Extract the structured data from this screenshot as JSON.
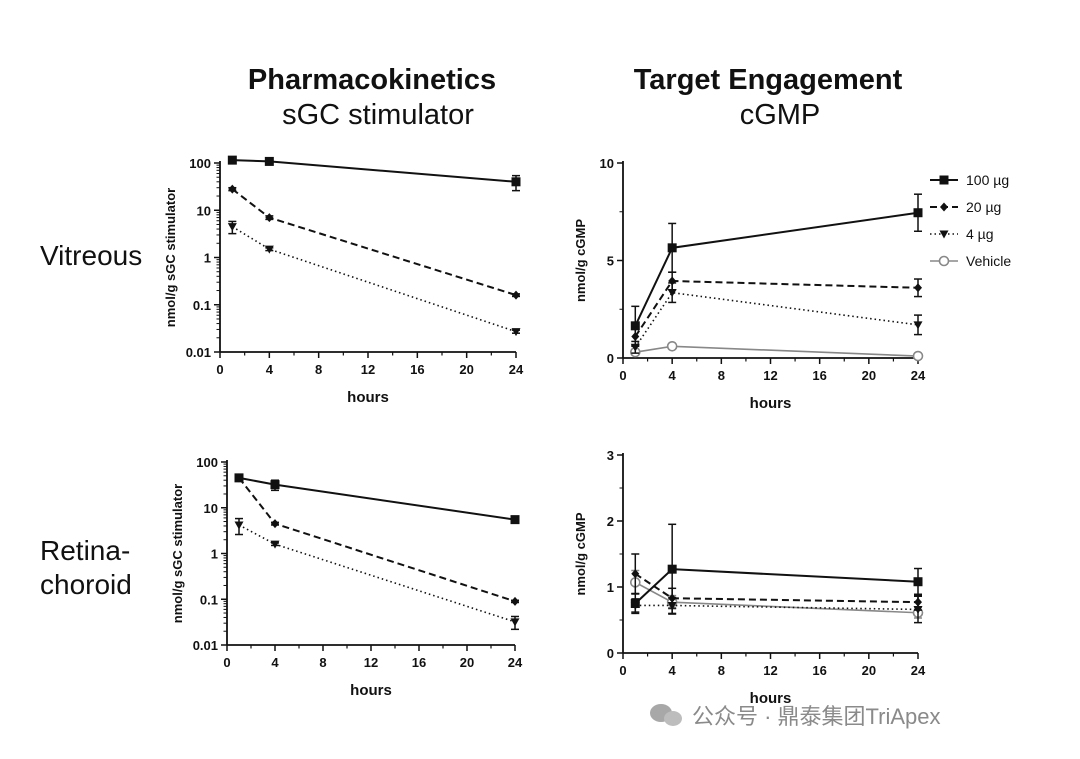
{
  "columns": [
    {
      "title": "Pharmacokinetics",
      "subtitle": "sGC stimulator"
    },
    {
      "title": "Target Engagement",
      "subtitle": "cGMP"
    }
  ],
  "rows": [
    {
      "label_lines": [
        "Vitreous"
      ]
    },
    {
      "label_lines": [
        "Retina-",
        "choroid"
      ]
    }
  ],
  "watermark": "公众号 · 鼎泰集团TriApex",
  "colors": {
    "axis": "#111111",
    "series_dark": "#111111",
    "vehicle": "#888888"
  },
  "chart_data": [
    {
      "id": "pk-vitreous",
      "type": "line",
      "xlabel": "hours",
      "ylabel": "nmol/g sGC stimulator",
      "yscale": "log",
      "xlim": [
        0,
        24
      ],
      "ylim": [
        0.01,
        100
      ],
      "xticks": [
        "0",
        "4",
        "8",
        "12",
        "16",
        "20",
        "24"
      ],
      "yticks": [
        "0.01",
        "0.1",
        "1",
        "10",
        "100"
      ],
      "legend": "none",
      "series": [
        {
          "key": "100",
          "x": [
            1,
            4,
            24
          ],
          "y": [
            115,
            108,
            40
          ],
          "err": [
            8,
            6,
            14
          ]
        },
        {
          "key": "20",
          "x": [
            1,
            4,
            24
          ],
          "y": [
            28,
            7,
            0.16
          ],
          "err": [
            2,
            0.6,
            0.01
          ]
        },
        {
          "key": "4",
          "x": [
            1,
            4,
            24
          ],
          "y": [
            4.5,
            1.5,
            0.027
          ],
          "err": [
            1.3,
            0.1,
            0.002
          ]
        }
      ]
    },
    {
      "id": "te-vitreous",
      "type": "line",
      "xlabel": "hours",
      "ylabel": "nmol/g cGMP",
      "yscale": "linear",
      "xlim": [
        0,
        24
      ],
      "ylim": [
        0,
        10
      ],
      "xticks": [
        "0",
        "4",
        "8",
        "12",
        "16",
        "20",
        "24"
      ],
      "yticks": [
        "0",
        "5",
        "10"
      ],
      "legend": "top-right",
      "series": [
        {
          "key": "100",
          "name": "100 µg",
          "x": [
            1,
            4,
            24
          ],
          "y": [
            1.65,
            5.65,
            7.45
          ],
          "err": [
            1.0,
            1.25,
            0.95
          ]
        },
        {
          "key": "20",
          "name": "20 µg",
          "x": [
            1,
            4,
            24
          ],
          "y": [
            1.1,
            3.95,
            3.6
          ],
          "err": [
            0.5,
            0.45,
            0.45
          ]
        },
        {
          "key": "4",
          "name": "4 µg",
          "x": [
            1,
            4,
            24
          ],
          "y": [
            0.55,
            3.35,
            1.7
          ],
          "err": [
            0.3,
            0.5,
            0.5
          ]
        },
        {
          "key": "veh",
          "name": "Vehicle",
          "x": [
            1,
            4,
            24
          ],
          "y": [
            0.3,
            0.6,
            0.1
          ],
          "err": [
            0.05,
            0.05,
            0.05
          ]
        }
      ]
    },
    {
      "id": "pk-retina",
      "type": "line",
      "xlabel": "hours",
      "ylabel": "nmol/g sGC stimulator",
      "yscale": "log",
      "xlim": [
        0,
        24
      ],
      "ylim": [
        0.01,
        100
      ],
      "xticks": [
        "0",
        "4",
        "8",
        "12",
        "16",
        "20",
        "24"
      ],
      "yticks": [
        "0.01",
        "0.1",
        "1",
        "10",
        "100"
      ],
      "legend": "none",
      "series": [
        {
          "key": "100",
          "x": [
            1,
            4,
            24
          ],
          "y": [
            45,
            32,
            5.5
          ],
          "err": [
            3,
            8,
            0.4
          ]
        },
        {
          "key": "20",
          "x": [
            1,
            4,
            24
          ],
          "y": [
            45,
            4.5,
            0.09
          ],
          "err": [
            3,
            0.3,
            0.005
          ]
        },
        {
          "key": "4",
          "x": [
            1,
            4,
            24
          ],
          "y": [
            4.2,
            1.6,
            0.032
          ],
          "err": [
            1.6,
            0.1,
            0.01
          ]
        }
      ]
    },
    {
      "id": "te-retina",
      "type": "line",
      "xlabel": "hours",
      "ylabel": "nmol/g cGMP",
      "yscale": "linear",
      "xlim": [
        0,
        24
      ],
      "ylim": [
        0,
        3
      ],
      "xticks": [
        "0",
        "4",
        "8",
        "12",
        "16",
        "20",
        "24"
      ],
      "yticks": [
        "0",
        "1",
        "2",
        "3"
      ],
      "legend": "none",
      "series": [
        {
          "key": "100",
          "x": [
            1,
            4,
            24
          ],
          "y": [
            0.75,
            1.27,
            1.08
          ],
          "err": [
            0.15,
            0.68,
            0.2
          ]
        },
        {
          "key": "20",
          "x": [
            1,
            4,
            24
          ],
          "y": [
            1.2,
            0.83,
            0.77
          ],
          "err": [
            0.3,
            0.15,
            0.12
          ]
        },
        {
          "key": "4",
          "x": [
            1,
            4,
            24
          ],
          "y": [
            0.72,
            0.72,
            0.66
          ],
          "err": [
            0.1,
            0.12,
            0.2
          ]
        },
        {
          "key": "veh",
          "x": [
            1,
            4,
            24
          ],
          "y": [
            1.07,
            0.77,
            0.61
          ],
          "err": [
            0.18,
            0.1,
            0.08
          ]
        }
      ]
    }
  ]
}
